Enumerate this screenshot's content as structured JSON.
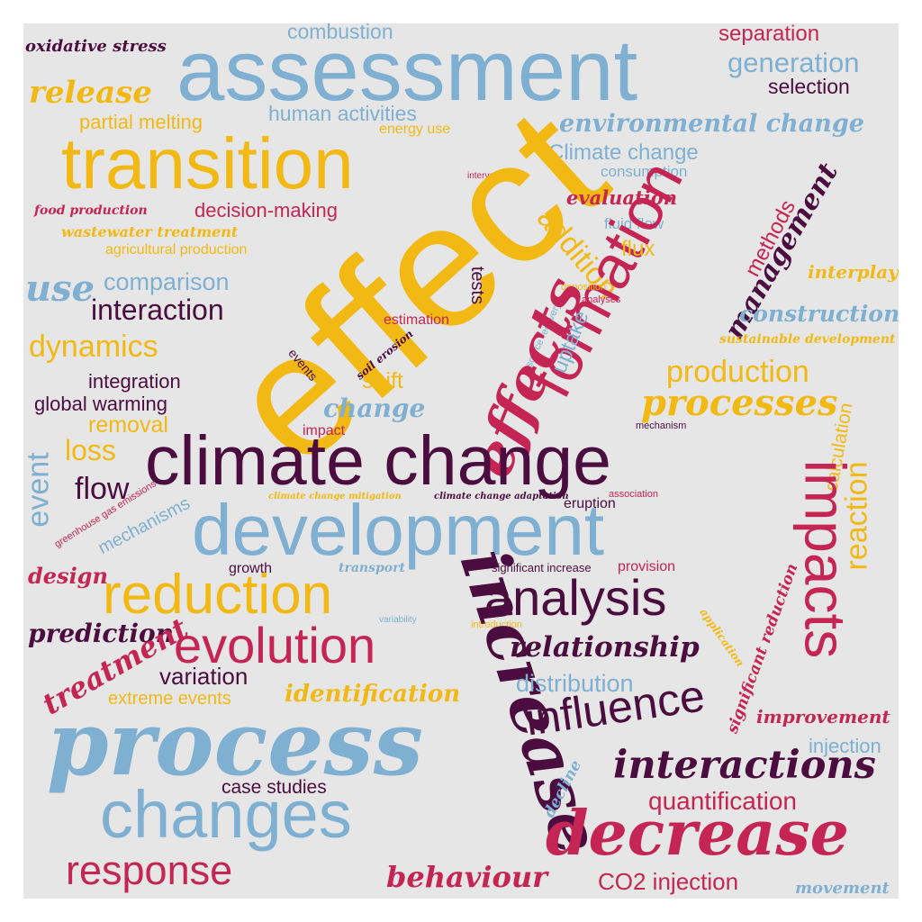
{
  "palette": {
    "yellow": "#f2b915",
    "blue": "#7fb0d2",
    "crimson": "#c52554",
    "plum": "#4b0d3f"
  },
  "words": [
    {
      "text": "combustion",
      "color": "blue"
    },
    {
      "text": "oxidative stress",
      "color": "plum"
    },
    {
      "text": "assessment",
      "color": "blue"
    },
    {
      "text": "separation",
      "color": "crimson"
    },
    {
      "text": "generation",
      "color": "blue"
    },
    {
      "text": "release",
      "color": "yellow"
    },
    {
      "text": "selection",
      "color": "plum"
    },
    {
      "text": "partial melting",
      "color": "yellow"
    },
    {
      "text": "human activities",
      "color": "blue"
    },
    {
      "text": "environmental change",
      "color": "blue"
    },
    {
      "text": "transition",
      "color": "yellow"
    },
    {
      "text": "energy use",
      "color": "yellow"
    },
    {
      "text": "Climate change",
      "color": "blue"
    },
    {
      "text": "consumption",
      "color": "blue"
    },
    {
      "text": "interventions",
      "color": "crimson"
    },
    {
      "text": "effect",
      "color": "yellow"
    },
    {
      "text": "food production",
      "color": "crimson"
    },
    {
      "text": "decision-making",
      "color": "crimson"
    },
    {
      "text": "evaluation",
      "color": "crimson"
    },
    {
      "text": "wastewater treatment",
      "color": "yellow"
    },
    {
      "text": "agricultural production",
      "color": "yellow"
    },
    {
      "text": "addition",
      "color": "yellow"
    },
    {
      "text": "fluid flow",
      "color": "blue"
    },
    {
      "text": "methods",
      "color": "crimson"
    },
    {
      "text": "management",
      "color": "plum"
    },
    {
      "text": "formation",
      "color": "crimson"
    },
    {
      "text": "flux",
      "color": "yellow"
    },
    {
      "text": "use",
      "color": "blue"
    },
    {
      "text": "comparison",
      "color": "blue"
    },
    {
      "text": "tests",
      "color": "plum"
    },
    {
      "text": "interplay",
      "color": "yellow"
    },
    {
      "text": "deposition",
      "color": "yellow"
    },
    {
      "text": "analyses",
      "color": "crimson"
    },
    {
      "text": "interaction",
      "color": "plum"
    },
    {
      "text": "construction",
      "color": "blue"
    },
    {
      "text": "estimation",
      "color": "crimson"
    },
    {
      "text": "resource recovery",
      "color": "blue"
    },
    {
      "text": "sustainable development",
      "color": "yellow"
    },
    {
      "text": "dynamics",
      "color": "yellow"
    },
    {
      "text": "uptake",
      "color": "blue"
    },
    {
      "text": "soil erosion",
      "color": "plum"
    },
    {
      "text": "events",
      "color": "plum"
    },
    {
      "text": "effects",
      "color": "crimson"
    },
    {
      "text": "production",
      "color": "yellow"
    },
    {
      "text": "integration",
      "color": "plum"
    },
    {
      "text": "shift",
      "color": "yellow"
    },
    {
      "text": "global warming",
      "color": "plum"
    },
    {
      "text": "change",
      "color": "blue"
    },
    {
      "text": "processes",
      "color": "yellow"
    },
    {
      "text": "calculation",
      "color": "yellow"
    },
    {
      "text": "removal",
      "color": "yellow"
    },
    {
      "text": "impact",
      "color": "crimson"
    },
    {
      "text": "mechanism",
      "color": "plum"
    },
    {
      "text": "event",
      "color": "blue"
    },
    {
      "text": "loss",
      "color": "yellow"
    },
    {
      "text": "climate change",
      "color": "plum"
    },
    {
      "text": "impacts",
      "color": "crimson"
    },
    {
      "text": "flow",
      "color": "plum"
    },
    {
      "text": "reaction",
      "color": "yellow"
    },
    {
      "text": "greenhouse gas emissions",
      "color": "crimson"
    },
    {
      "text": "climate change mitigation",
      "color": "yellow"
    },
    {
      "text": "climate change adaptation",
      "color": "plum"
    },
    {
      "text": "association",
      "color": "crimson"
    },
    {
      "text": "mechanisms",
      "color": "blue"
    },
    {
      "text": "eruption",
      "color": "plum"
    },
    {
      "text": "development",
      "color": "blue"
    },
    {
      "text": "design",
      "color": "crimson"
    },
    {
      "text": "growth",
      "color": "plum"
    },
    {
      "text": "transport",
      "color": "blue"
    },
    {
      "text": "significant increase",
      "color": "plum"
    },
    {
      "text": "provision",
      "color": "crimson"
    },
    {
      "text": "reduction",
      "color": "yellow"
    },
    {
      "text": "analysis",
      "color": "plum"
    },
    {
      "text": "significant reduction",
      "color": "crimson"
    },
    {
      "text": "prediction",
      "color": "plum"
    },
    {
      "text": "variability",
      "color": "blue"
    },
    {
      "text": "introduction",
      "color": "yellow"
    },
    {
      "text": "application",
      "color": "yellow"
    },
    {
      "text": "increase",
      "color": "plum"
    },
    {
      "text": "evolution",
      "color": "crimson"
    },
    {
      "text": "relationship",
      "color": "plum"
    },
    {
      "text": "treatment",
      "color": "crimson"
    },
    {
      "text": "variation",
      "color": "plum"
    },
    {
      "text": "distribution",
      "color": "blue"
    },
    {
      "text": "extreme events",
      "color": "yellow"
    },
    {
      "text": "identification",
      "color": "yellow"
    },
    {
      "text": "influence",
      "color": "plum"
    },
    {
      "text": "improvement",
      "color": "crimson"
    },
    {
      "text": "process",
      "color": "blue"
    },
    {
      "text": "injection",
      "color": "blue"
    },
    {
      "text": "interactions",
      "color": "plum"
    },
    {
      "text": "decline",
      "color": "blue"
    },
    {
      "text": "case studies",
      "color": "plum"
    },
    {
      "text": "quantification",
      "color": "crimson"
    },
    {
      "text": "changes",
      "color": "blue"
    },
    {
      "text": "decrease",
      "color": "crimson"
    },
    {
      "text": "response",
      "color": "crimson"
    },
    {
      "text": "behaviour",
      "color": "crimson"
    },
    {
      "text": "CO2 injection",
      "color": "crimson"
    },
    {
      "text": "movement",
      "color": "blue"
    }
  ]
}
